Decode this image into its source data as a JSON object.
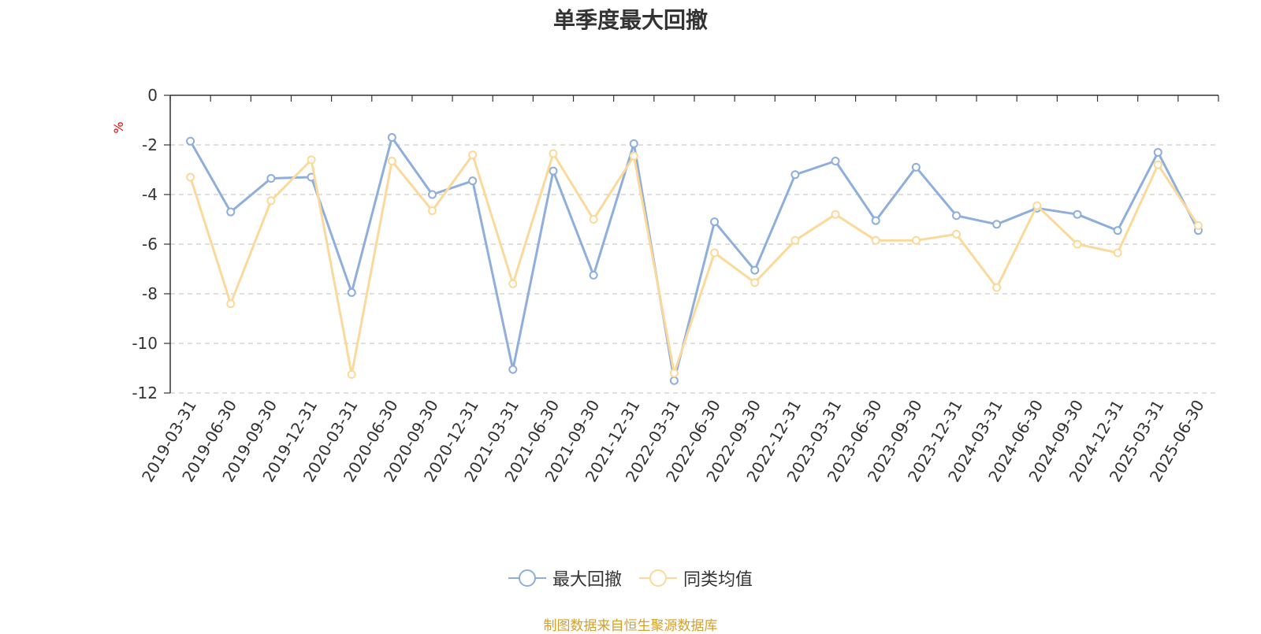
{
  "chart_data": {
    "type": "line",
    "title": "单季度最大回撤",
    "ylabel": "%",
    "ylim": [
      -12,
      0
    ],
    "yticks": [
      0,
      -2,
      -4,
      -6,
      -8,
      -10,
      -12
    ],
    "grid": true,
    "legend_position": "bottom",
    "x": [
      "2019-03-31",
      "2019-06-30",
      "2019-09-30",
      "2019-12-31",
      "2020-03-31",
      "2020-06-30",
      "2020-09-30",
      "2020-12-31",
      "2021-03-31",
      "2021-06-30",
      "2021-09-30",
      "2021-12-31",
      "2022-03-31",
      "2022-06-30",
      "2022-09-30",
      "2022-12-31",
      "2023-03-31",
      "2023-06-30",
      "2023-09-30",
      "2023-12-31",
      "2024-03-31",
      "2024-06-30",
      "2024-09-30",
      "2024-12-31",
      "2025-03-31",
      "2025-06-30"
    ],
    "series": [
      {
        "name": "最大回撤",
        "color": "#8eaedb",
        "values": [
          -1.85,
          -4.7,
          -3.35,
          -3.3,
          -7.95,
          -1.7,
          -4.0,
          -3.45,
          -11.05,
          -3.05,
          -7.25,
          -1.95,
          -11.5,
          -5.1,
          -7.05,
          -3.2,
          -2.65,
          -5.05,
          -2.9,
          -4.85,
          -5.2,
          -4.55,
          -4.8,
          -5.45,
          -2.3,
          -5.45
        ]
      },
      {
        "name": "同类均值",
        "color": "#fbd99a",
        "values": [
          -3.3,
          -8.4,
          -4.25,
          -2.6,
          -11.25,
          -2.65,
          -4.65,
          -2.4,
          -7.6,
          -2.35,
          -5.0,
          -2.45,
          -11.2,
          -6.35,
          -7.55,
          -5.85,
          -4.8,
          -5.85,
          -5.85,
          -5.6,
          -7.75,
          -4.45,
          -6.0,
          -6.35,
          -2.8,
          -5.25
        ]
      }
    ]
  },
  "legend": [
    "最大回撤",
    "同类均值"
  ],
  "source": "制图数据来自恒生聚源数据库"
}
